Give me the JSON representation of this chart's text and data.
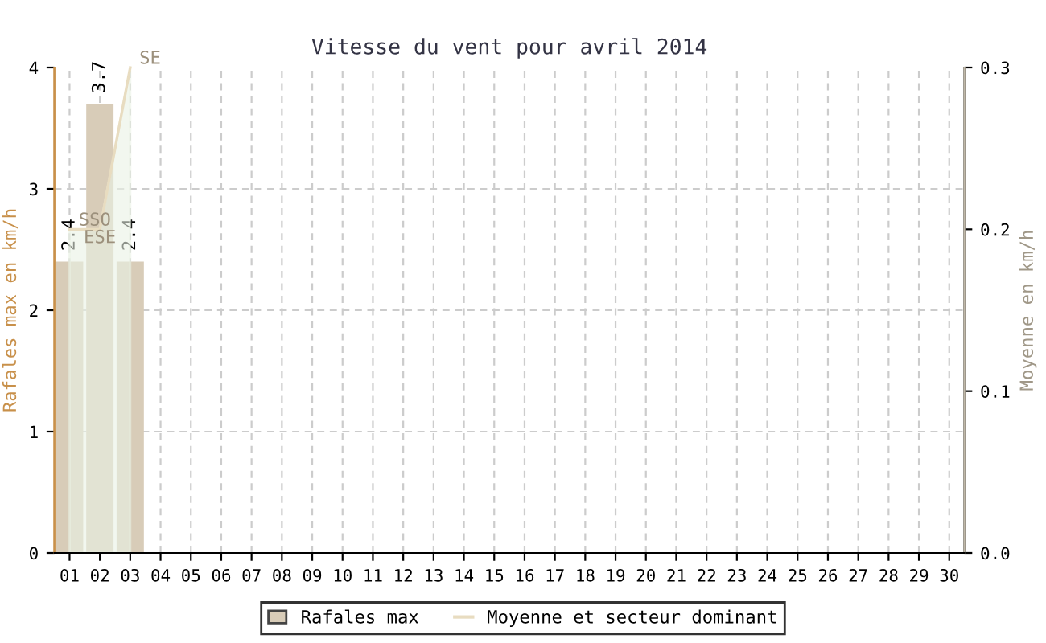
{
  "chart_data": {
    "type": "bar",
    "title": "Vitesse du vent pour avril 2014",
    "categories": [
      "01",
      "02",
      "03",
      "04",
      "05",
      "06",
      "07",
      "08",
      "09",
      "10",
      "11",
      "12",
      "13",
      "14",
      "15",
      "16",
      "17",
      "18",
      "19",
      "20",
      "21",
      "22",
      "23",
      "24",
      "25",
      "26",
      "27",
      "28",
      "29",
      "30"
    ],
    "series": [
      {
        "name": "Rafales max",
        "color": "#d8ccb8",
        "values": [
          2.4,
          3.7,
          2.4,
          null,
          null,
          null,
          null,
          null,
          null,
          null,
          null,
          null,
          null,
          null,
          null,
          null,
          null,
          null,
          null,
          null,
          null,
          null,
          null,
          null,
          null,
          null,
          null,
          null,
          null,
          null
        ],
        "value_labels": [
          "2.4",
          "3.7",
          "2.4",
          null,
          null,
          null,
          null,
          null,
          null,
          null,
          null,
          null,
          null,
          null,
          null,
          null,
          null,
          null,
          null,
          null,
          null,
          null,
          null,
          null,
          null,
          null,
          null,
          null,
          null,
          null
        ]
      },
      {
        "name": "Moyenne et secteur dominant",
        "type": "area",
        "axis": "y2",
        "color": "#e8dcc0",
        "values": [
          0.2,
          0.2,
          0.3,
          null,
          null,
          null,
          null,
          null,
          null,
          null,
          null,
          null,
          null,
          null,
          null,
          null,
          null,
          null,
          null,
          null,
          null,
          null,
          null,
          null,
          null,
          null,
          null,
          null,
          null,
          null
        ],
        "value_labels": [
          "SSO",
          "ESE",
          "SE",
          null,
          null,
          null,
          null,
          null,
          null,
          null,
          null,
          null,
          null,
          null,
          null,
          null,
          null,
          null,
          null,
          null,
          null,
          null,
          null,
          null,
          null,
          null,
          null,
          null,
          null,
          null
        ]
      }
    ],
    "ylabel": "Rafales max en km/h",
    "y2label": "Moyenne en km/h",
    "ylim": [
      0,
      4
    ],
    "yticks": [
      0,
      1,
      2,
      3,
      4
    ],
    "y2lim": [
      0,
      0.3
    ],
    "y2ticks": [
      {
        "value": 0,
        "label": "0.0"
      },
      0.1,
      0.2,
      0.3
    ],
    "grid": true,
    "legend": "bottom"
  }
}
